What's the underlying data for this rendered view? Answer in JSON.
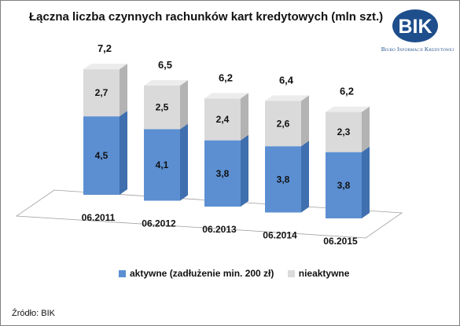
{
  "title": "Łączna liczba czynnych rachunków kart kredytowych (mln szt.)",
  "logo": {
    "text": "BIK",
    "subtitle": "Biuro Informacji Kredytowej",
    "color": "#1e4e8c"
  },
  "source": "Źródło: BIK",
  "colors": {
    "active": "#5b8fd2",
    "inactive": "#dadada"
  },
  "chart_data": {
    "type": "bar",
    "stacked": true,
    "three_d": true,
    "title": "Łączna liczba czynnych rachunków kart kredytowych (mln szt.)",
    "categories": [
      "06.2011",
      "06.2012",
      "06.2013",
      "06.2014",
      "06.2015"
    ],
    "series": [
      {
        "name": "aktywne (zadłużenie min. 200 zł)",
        "values": [
          4.5,
          4.1,
          3.8,
          3.8,
          3.8
        ],
        "value_labels": [
          "4,5",
          "4,1",
          "3,8",
          "3,8",
          "3,8"
        ]
      },
      {
        "name": "nieaktywne",
        "values": [
          2.7,
          2.5,
          2.4,
          2.6,
          2.3
        ],
        "value_labels": [
          "2,7",
          "2,5",
          "2,4",
          "2,6",
          "2,3"
        ]
      }
    ],
    "totals": [
      7.2,
      6.5,
      6.2,
      6.4,
      6.2
    ],
    "total_labels": [
      "7,2",
      "6,5",
      "6,2",
      "6,4",
      "6,2"
    ],
    "legend_position": "bottom",
    "grid": false
  }
}
